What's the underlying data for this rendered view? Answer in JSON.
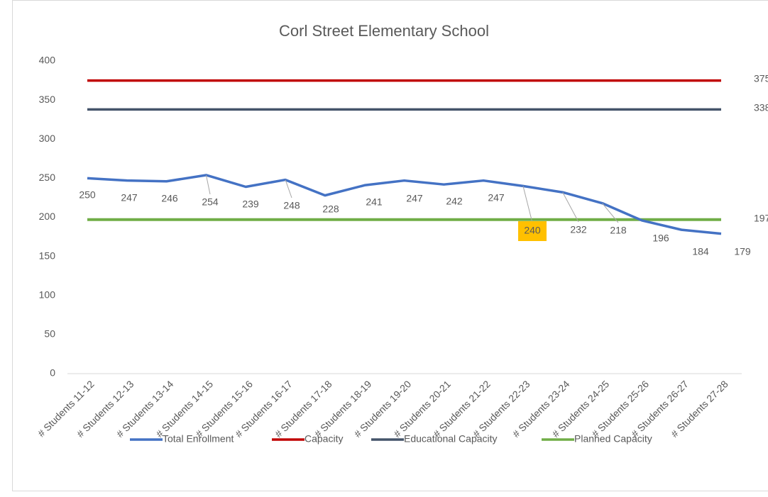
{
  "chart_data": {
    "type": "line",
    "title": "Corl Street Elementary School",
    "categories": [
      "# Students 11-12",
      "# Students 12-13",
      "# Students 13-14",
      "# Students 14-15",
      "# Students 15-16",
      "# Students 16-17",
      "# Students 17-18",
      "# Students 18-19",
      "# Students 19-20",
      "# Students 20-21",
      "# Students 21-22",
      "# Students 22-23",
      "# Students 23-24",
      "# Students 24-25",
      "# Students 25-26",
      "# Students 26-27",
      "# Students 27-28"
    ],
    "series": [
      {
        "name": "Total Enrollment",
        "color": "#4472c4",
        "values": [
          250,
          247,
          246,
          254,
          239,
          248,
          228,
          241,
          247,
          242,
          247,
          240,
          232,
          218,
          196,
          184,
          179
        ]
      },
      {
        "name": "Capacity",
        "color": "#c00000",
        "values": [
          375,
          375,
          375,
          375,
          375,
          375,
          375,
          375,
          375,
          375,
          375,
          375,
          375,
          375,
          375,
          375,
          375
        ]
      },
      {
        "name": "Educational Capacity",
        "color": "#44546a",
        "values": [
          338,
          338,
          338,
          338,
          338,
          338,
          338,
          338,
          338,
          338,
          338,
          338,
          338,
          338,
          338,
          338,
          338
        ]
      },
      {
        "name": "Planned Capacity",
        "color": "#70ad47",
        "values": [
          197,
          197,
          197,
          197,
          197,
          197,
          197,
          197,
          197,
          197,
          197,
          197,
          197,
          197,
          197,
          197,
          197
        ]
      }
    ],
    "ylim": [
      0,
      400
    ],
    "yticks": [
      0,
      50,
      100,
      150,
      200,
      250,
      300,
      350,
      400
    ],
    "grid": false,
    "legend": "bottom"
  }
}
